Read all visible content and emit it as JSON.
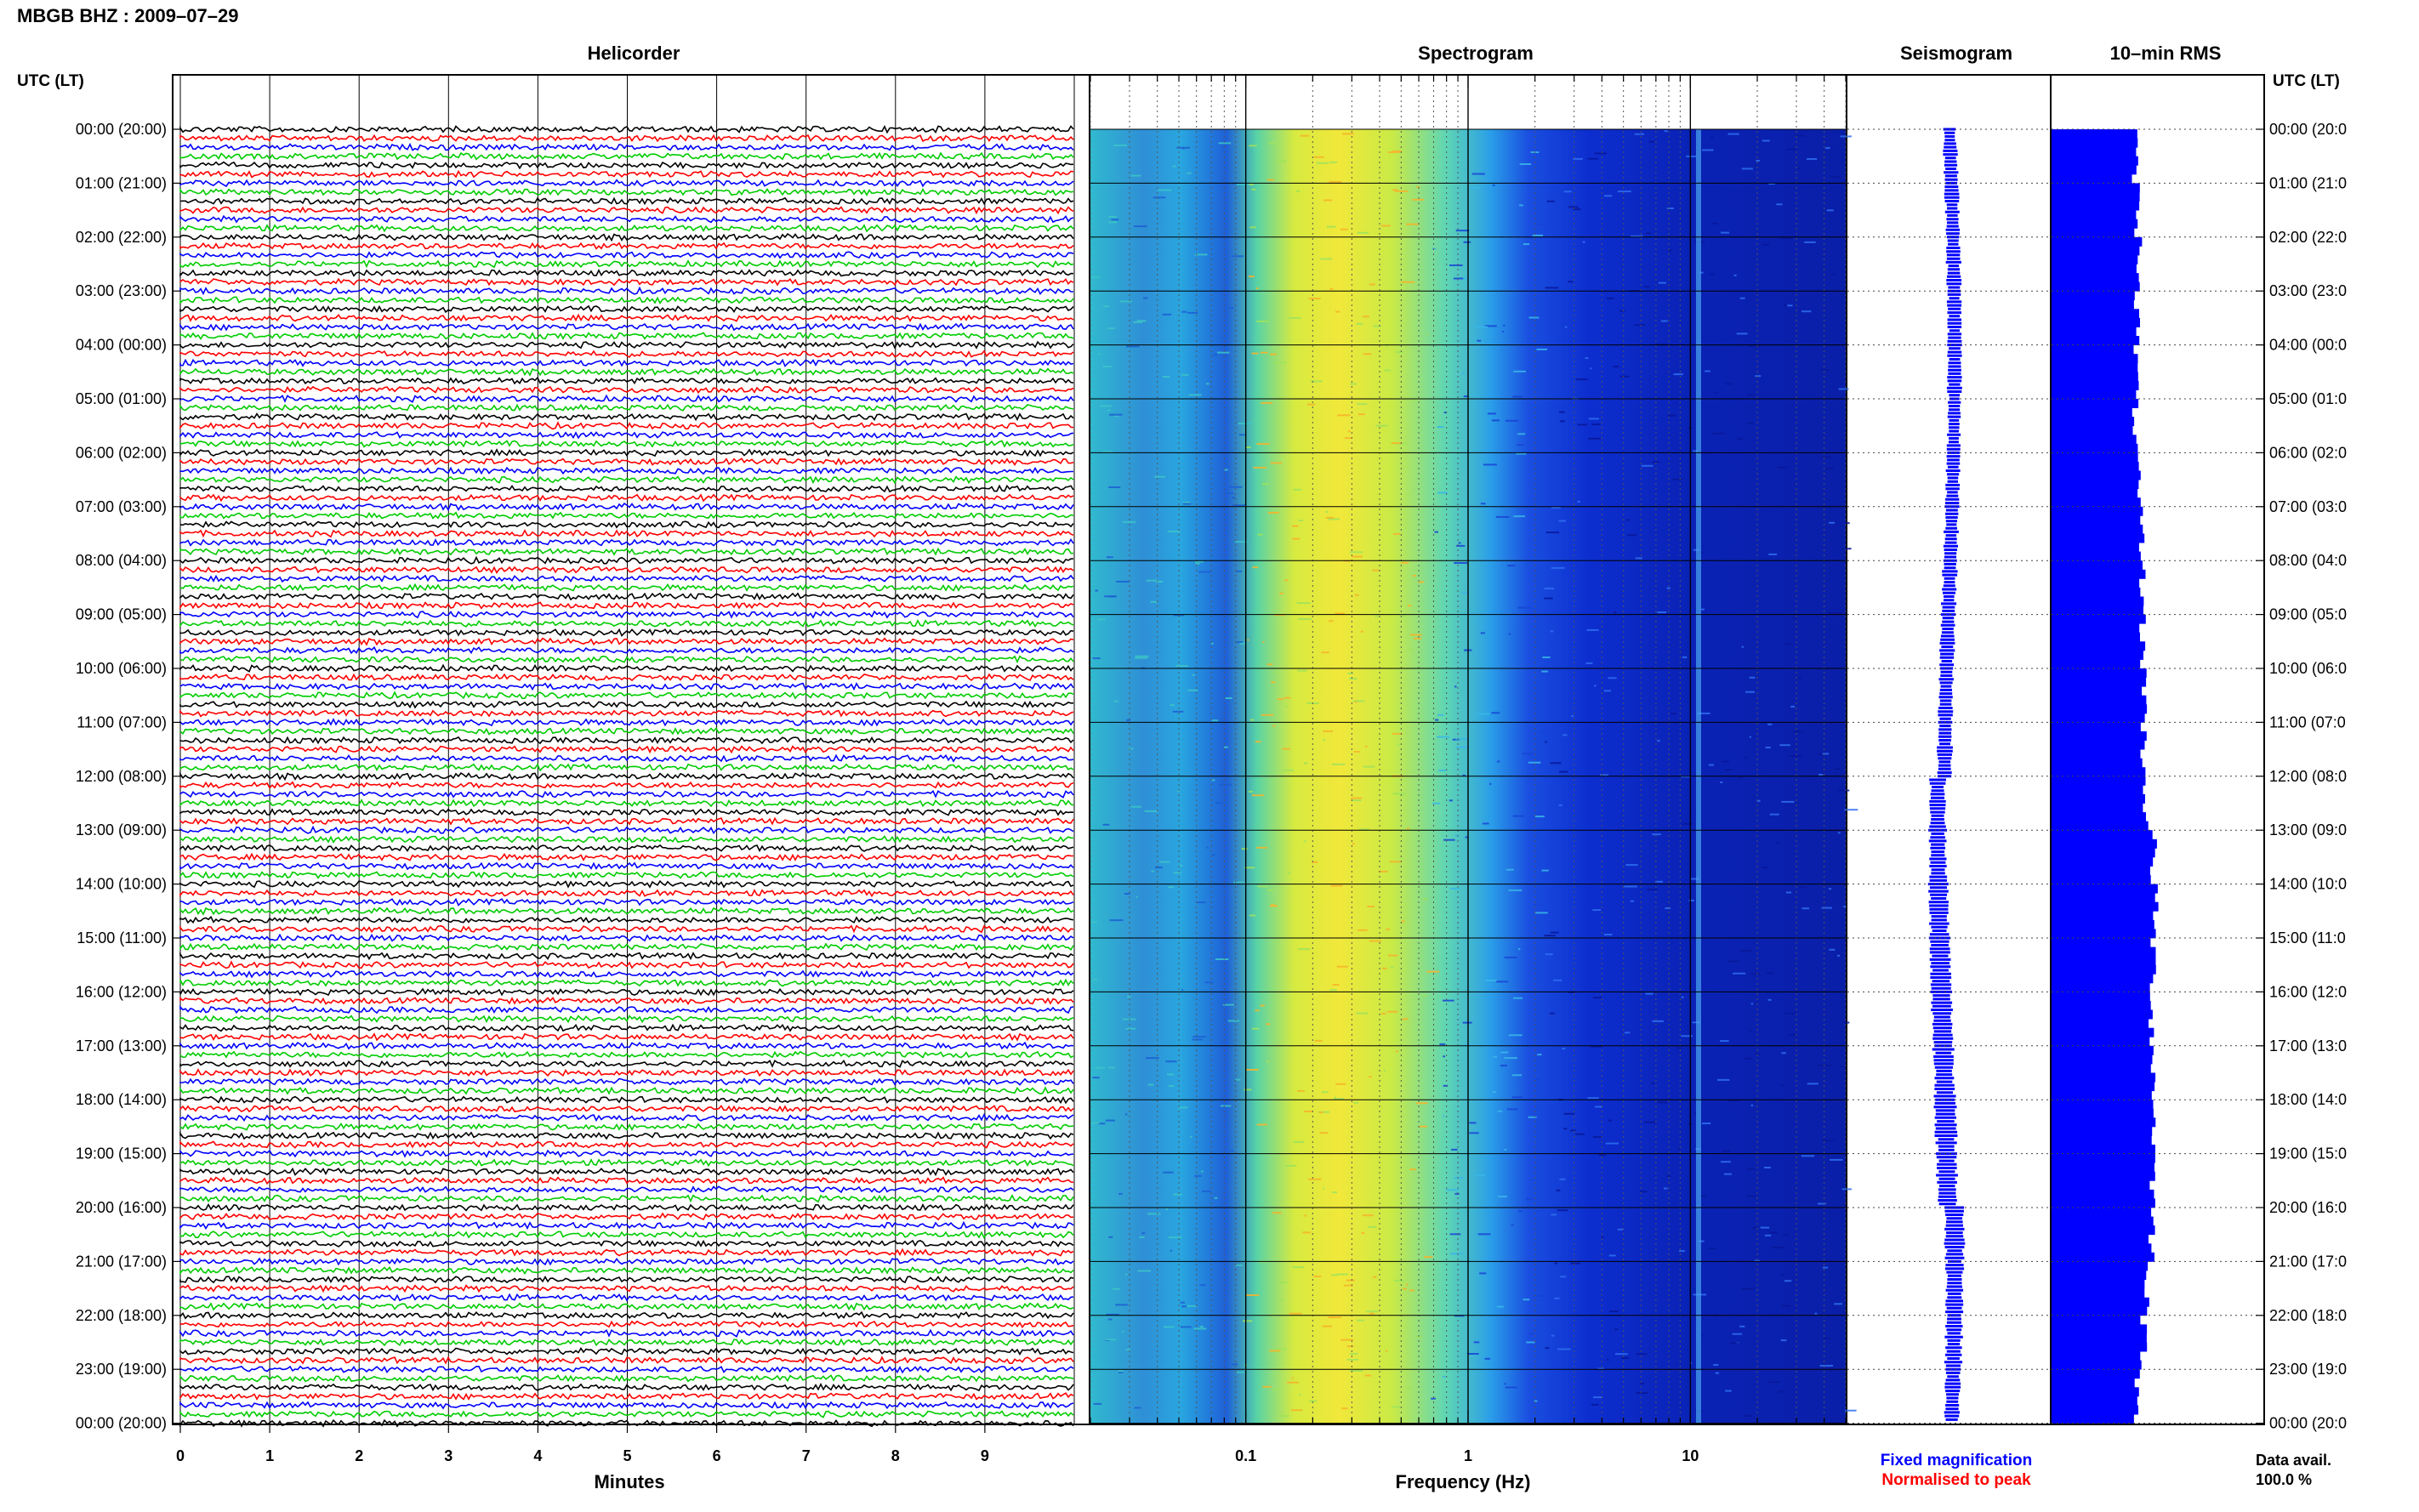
{
  "header": {
    "station_title": "MBGB BHZ : 2009–07–29"
  },
  "time_axis": {
    "left_label": "UTC (LT)",
    "right_label": "UTC (LT)",
    "left_ticks": [
      "00:00 (20:00)",
      "01:00 (21:00)",
      "02:00 (22:00)",
      "03:00 (23:00)",
      "04:00 (00:00)",
      "05:00 (01:00)",
      "06:00 (02:00)",
      "07:00 (03:00)",
      "08:00 (04:00)",
      "09:00 (05:00)",
      "10:00 (06:00)",
      "11:00 (07:00)",
      "12:00 (08:00)",
      "13:00 (09:00)",
      "14:00 (10:00)",
      "15:00 (11:00)",
      "16:00 (12:00)",
      "17:00 (13:00)",
      "18:00 (14:00)",
      "19:00 (15:00)",
      "20:00 (16:00)",
      "21:00 (17:00)",
      "22:00 (18:00)",
      "23:00 (19:00)",
      "00:00 (20:00)"
    ],
    "right_ticks": [
      "00:00 (20:0",
      "01:00 (21:0",
      "02:00 (22:0",
      "03:00 (23:0",
      "04:00 (00:0",
      "05:00 (01:0",
      "06:00 (02:0",
      "07:00 (03:0",
      "08:00 (04:0",
      "09:00 (05:0",
      "10:00 (06:0",
      "11:00 (07:0",
      "12:00 (08:0",
      "13:00 (09:0",
      "14:00 (10:0",
      "15:00 (11:0",
      "16:00 (12:0",
      "17:00 (13:0",
      "18:00 (14:0",
      "19:00 (15:0",
      "20:00 (16:0",
      "21:00 (17:0",
      "22:00 (18:0",
      "23:00 (19:0",
      "00:00 (20:0"
    ]
  },
  "chart_data": [
    {
      "type": "line",
      "panel": "helicorder",
      "title": "Helicorder",
      "xlabel": "Minutes",
      "ylabel": "UTC (LT)",
      "x_ticks": [
        "0",
        "1",
        "2",
        "3",
        "4",
        "5",
        "6",
        "7",
        "8",
        "9"
      ],
      "xlim": [
        0,
        10
      ],
      "traces_per_hour": 6,
      "hours": 24,
      "trace_color_cycle": [
        "#000000",
        "#ff0000",
        "#0000ff",
        "#00cc00"
      ],
      "grid": true
    },
    {
      "type": "heatmap",
      "panel": "spectrogram",
      "title": "Spectrogram",
      "xlabel": "Frequency (Hz)",
      "x_scale": "log",
      "xlim": [
        0.02,
        50
      ],
      "x_ticks": [
        "0.1",
        "1",
        "10"
      ],
      "grid": true
    },
    {
      "type": "line",
      "panel": "seismogram",
      "title": "Seismogram",
      "series": [
        {
          "name": "Fixed magnification",
          "color": "#0000ff"
        }
      ],
      "relative_amplitude": [
        0.52,
        0.54,
        0.55,
        0.53,
        0.54,
        0.52,
        0.51,
        0.53,
        0.55,
        0.55,
        0.56,
        0.57,
        0.6,
        0.68,
        0.74,
        0.78,
        0.8,
        0.82,
        0.81,
        0.78,
        0.76,
        0.7,
        0.64,
        0.58,
        0.55
      ]
    },
    {
      "type": "bar",
      "panel": "rms",
      "title": "10–min RMS",
      "series": [
        {
          "name": "10-min RMS",
          "color": "#0000ff"
        }
      ],
      "relative_values": [
        0.78,
        0.8,
        0.82,
        0.8,
        0.79,
        0.78,
        0.8,
        0.84,
        0.85,
        0.85,
        0.87,
        0.86,
        0.88,
        0.95,
        0.96,
        0.95,
        0.94,
        0.95,
        0.96,
        0.95,
        0.94,
        0.9,
        0.86,
        0.8,
        0.8
      ]
    }
  ],
  "legend": {
    "fixed_label": "Fixed magnification",
    "fixed_color": "#0000ff",
    "normalised_label": "Normalised to peak",
    "normalised_color": "#ff0000"
  },
  "data_avail": {
    "label": "Data avail.",
    "value": "100.0 %"
  }
}
